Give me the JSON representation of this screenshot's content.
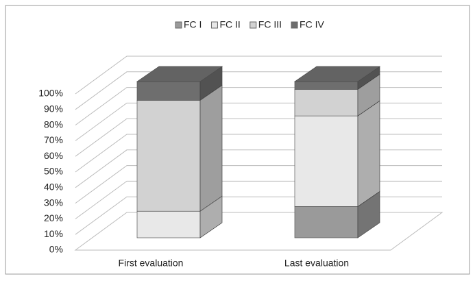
{
  "chart_data": {
    "type": "bar3d-stacked",
    "categories": [
      "First evaluation",
      "Last evaluation"
    ],
    "series": [
      {
        "name": "FC I",
        "color": "#9a9a9a",
        "values": [
          0,
          20
        ]
      },
      {
        "name": "FC II",
        "color": "#e8e8e8",
        "values": [
          17,
          58
        ]
      },
      {
        "name": "FC III",
        "color": "#d2d2d2",
        "values": [
          71,
          17
        ]
      },
      {
        "name": "FC IV",
        "color": "#6e6e6e",
        "values": [
          12,
          5
        ]
      }
    ],
    "ylim": [
      0,
      100
    ],
    "yticks": [
      {
        "value": 0,
        "label": "0%"
      },
      {
        "value": 10,
        "label": "10%"
      },
      {
        "value": 20,
        "label": "20%"
      },
      {
        "value": 30,
        "label": "30%"
      },
      {
        "value": 40,
        "label": "40%"
      },
      {
        "value": 50,
        "label": "50%"
      },
      {
        "value": 60,
        "label": "60%"
      },
      {
        "value": 70,
        "label": "70%"
      },
      {
        "value": 80,
        "label": "80%"
      },
      {
        "value": 90,
        "label": "90%"
      },
      {
        "value": 100,
        "label": "100%"
      }
    ],
    "grid": true,
    "legend": "top"
  }
}
